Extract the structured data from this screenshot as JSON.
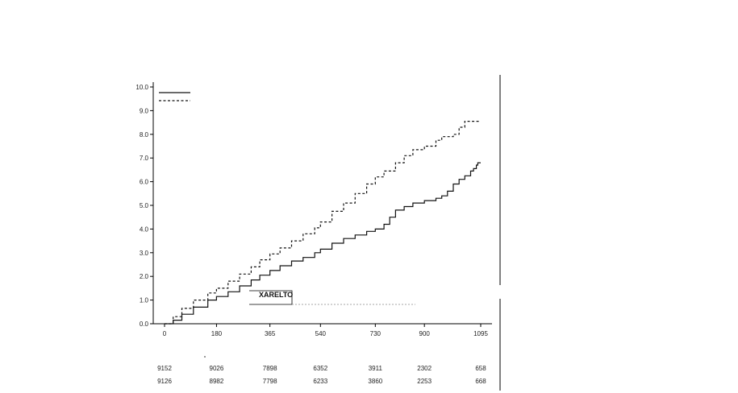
{
  "chart_data": {
    "type": "line",
    "title": "",
    "xlabel": "",
    "ylabel": "",
    "xlim": [
      0,
      1095
    ],
    "ylim": [
      0,
      10
    ],
    "grid": false,
    "legend": "top-left",
    "x_ticks": [
      "0",
      "180",
      "365",
      "540",
      "730",
      "900",
      "1095"
    ],
    "y_ticks": [
      "0.0",
      "1.0",
      "2.0",
      "3.0",
      "4.0",
      "5.0",
      "6.0",
      "7.0",
      "8.0",
      "9.0",
      "10.0"
    ],
    "series": [
      {
        "style": "solid",
        "color": "#111111",
        "x": [
          0,
          30,
          60,
          100,
          150,
          180,
          220,
          260,
          300,
          330,
          365,
          400,
          440,
          480,
          520,
          540,
          580,
          620,
          660,
          700,
          730,
          760,
          780,
          800,
          830,
          860,
          900,
          940,
          960,
          980,
          1000,
          1020,
          1040,
          1060,
          1070,
          1080,
          1085,
          1095
        ],
        "y": [
          0.0,
          0.15,
          0.4,
          0.7,
          1.0,
          1.15,
          1.35,
          1.6,
          1.85,
          2.05,
          2.25,
          2.45,
          2.65,
          2.8,
          3.0,
          3.15,
          3.4,
          3.6,
          3.75,
          3.9,
          4.0,
          4.2,
          4.5,
          4.8,
          4.95,
          5.1,
          5.2,
          5.3,
          5.4,
          5.6,
          5.9,
          6.1,
          6.25,
          6.45,
          6.55,
          6.7,
          6.8,
          6.8
        ]
      },
      {
        "style": "dashed",
        "color": "#111111",
        "x": [
          0,
          30,
          60,
          100,
          150,
          180,
          220,
          260,
          300,
          330,
          365,
          400,
          440,
          480,
          520,
          540,
          580,
          620,
          660,
          700,
          730,
          760,
          800,
          830,
          860,
          900,
          940,
          960,
          1000,
          1020,
          1040,
          1060,
          1080,
          1095
        ],
        "y": [
          0.0,
          0.3,
          0.65,
          1.0,
          1.3,
          1.5,
          1.8,
          2.1,
          2.4,
          2.7,
          2.95,
          3.2,
          3.5,
          3.8,
          4.05,
          4.3,
          4.75,
          5.1,
          5.5,
          5.9,
          6.2,
          6.45,
          6.8,
          7.1,
          7.35,
          7.5,
          7.75,
          7.9,
          8.0,
          8.3,
          8.55,
          8.55,
          8.55,
          8.55
        ]
      }
    ],
    "annotation": "XARELTO",
    "at_risk": [
      [
        "9152",
        "9026",
        "7898",
        "6352",
        "3911",
        "2302",
        "658"
      ],
      [
        "9126",
        "8982",
        "7798",
        "6233",
        "3860",
        "2253",
        "668"
      ]
    ]
  }
}
